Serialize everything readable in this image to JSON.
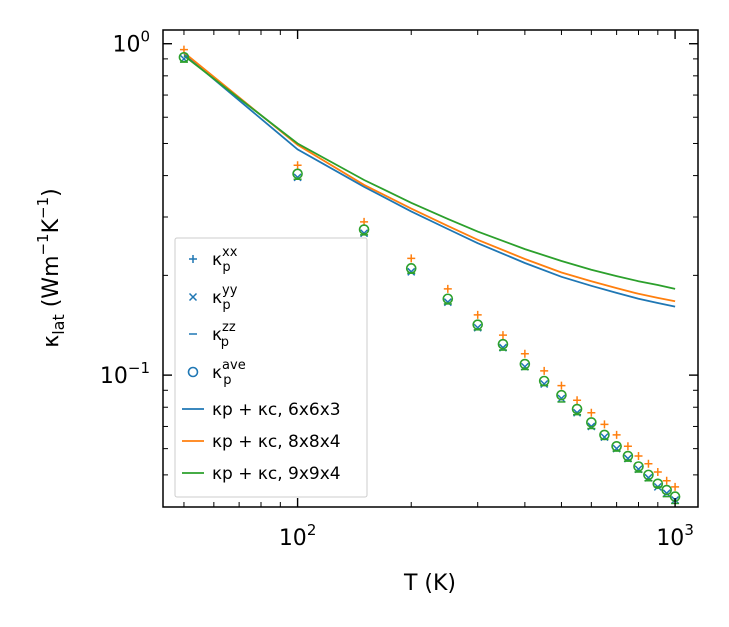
{
  "chart_data": {
    "type": "line",
    "xscale": "log",
    "yscale": "log",
    "xlabel": "T (K)",
    "ylabel": "κlat (Wm⁻¹K⁻¹)",
    "xlim": [
      44,
      1150
    ],
    "ylim": [
      0.04,
      1.1
    ],
    "x_ticks": [
      {
        "value": 100,
        "base": "10",
        "exp": "2"
      },
      {
        "value": 1000,
        "base": "10",
        "exp": "3"
      }
    ],
    "y_ticks": [
      {
        "value": 0.1,
        "base": "10",
        "exp": "−1"
      },
      {
        "value": 1,
        "base": "10",
        "exp": "0"
      }
    ],
    "legend_position": "lower-left",
    "points": {
      "x": [
        50,
        100,
        150,
        200,
        250,
        300,
        350,
        400,
        450,
        500,
        550,
        600,
        650,
        700,
        750,
        800,
        850,
        900,
        950,
        1000
      ],
      "series": [
        {
          "name": "κp^xx",
          "label_base": "κ",
          "label_sub": "p",
          "label_sup": "xx",
          "marker": "plus",
          "color": "#ff7f0e",
          "values": [
            0.96,
            0.43,
            0.29,
            0.225,
            0.182,
            0.152,
            0.132,
            0.116,
            0.103,
            0.093,
            0.084,
            0.077,
            0.071,
            0.066,
            0.061,
            0.057,
            0.054,
            0.051,
            0.048,
            0.046
          ]
        },
        {
          "name": "κp^yy",
          "label_base": "κ",
          "label_sub": "p",
          "label_sup": "yy",
          "marker": "x",
          "color": "#1f77b4",
          "values": [
            0.9,
            0.395,
            0.268,
            0.205,
            0.166,
            0.139,
            0.121,
            0.106,
            0.094,
            0.085,
            0.077,
            0.07,
            0.065,
            0.06,
            0.056,
            0.052,
            0.049,
            0.046,
            0.044,
            0.042
          ]
        },
        {
          "name": "κp^zz",
          "label_base": "κ",
          "label_sub": "p",
          "label_sup": "zz",
          "marker": "dash",
          "color": "#2ca02c",
          "values": [
            0.88,
            0.39,
            0.265,
            0.203,
            0.164,
            0.137,
            0.119,
            0.104,
            0.093,
            0.083,
            0.076,
            0.069,
            0.064,
            0.059,
            0.055,
            0.051,
            0.048,
            0.046,
            0.043,
            0.041
          ]
        },
        {
          "name": "κp^ave",
          "label_base": "κ",
          "label_sub": "p",
          "label_sup": "ave",
          "marker": "circle",
          "color": "#2ca02c",
          "values": [
            0.91,
            0.405,
            0.275,
            0.21,
            0.17,
            0.142,
            0.124,
            0.108,
            0.096,
            0.087,
            0.079,
            0.072,
            0.066,
            0.061,
            0.057,
            0.053,
            0.05,
            0.047,
            0.045,
            0.043
          ]
        }
      ]
    },
    "lines": {
      "x": [
        50,
        100,
        150,
        200,
        250,
        300,
        400,
        500,
        600,
        700,
        800,
        900,
        1000
      ],
      "series": [
        {
          "name": "κp + κc, 6x6x3",
          "grid": "6x6x3",
          "color": "#1f77b4",
          "values": [
            0.93,
            0.48,
            0.37,
            0.312,
            0.276,
            0.25,
            0.218,
            0.198,
            0.186,
            0.177,
            0.17,
            0.165,
            0.161
          ]
        },
        {
          "name": "κp + κc, 8x8x4",
          "grid": "8x8x4",
          "color": "#ff7f0e",
          "values": [
            0.94,
            0.495,
            0.375,
            0.318,
            0.282,
            0.256,
            0.224,
            0.204,
            0.192,
            0.183,
            0.176,
            0.171,
            0.167
          ]
        },
        {
          "name": "κp + κc, 9x9x4",
          "grid": "9x9x4",
          "color": "#2ca02c",
          "values": [
            0.92,
            0.5,
            0.388,
            0.331,
            0.296,
            0.271,
            0.24,
            0.221,
            0.208,
            0.199,
            0.192,
            0.187,
            0.182
          ]
        }
      ]
    }
  }
}
